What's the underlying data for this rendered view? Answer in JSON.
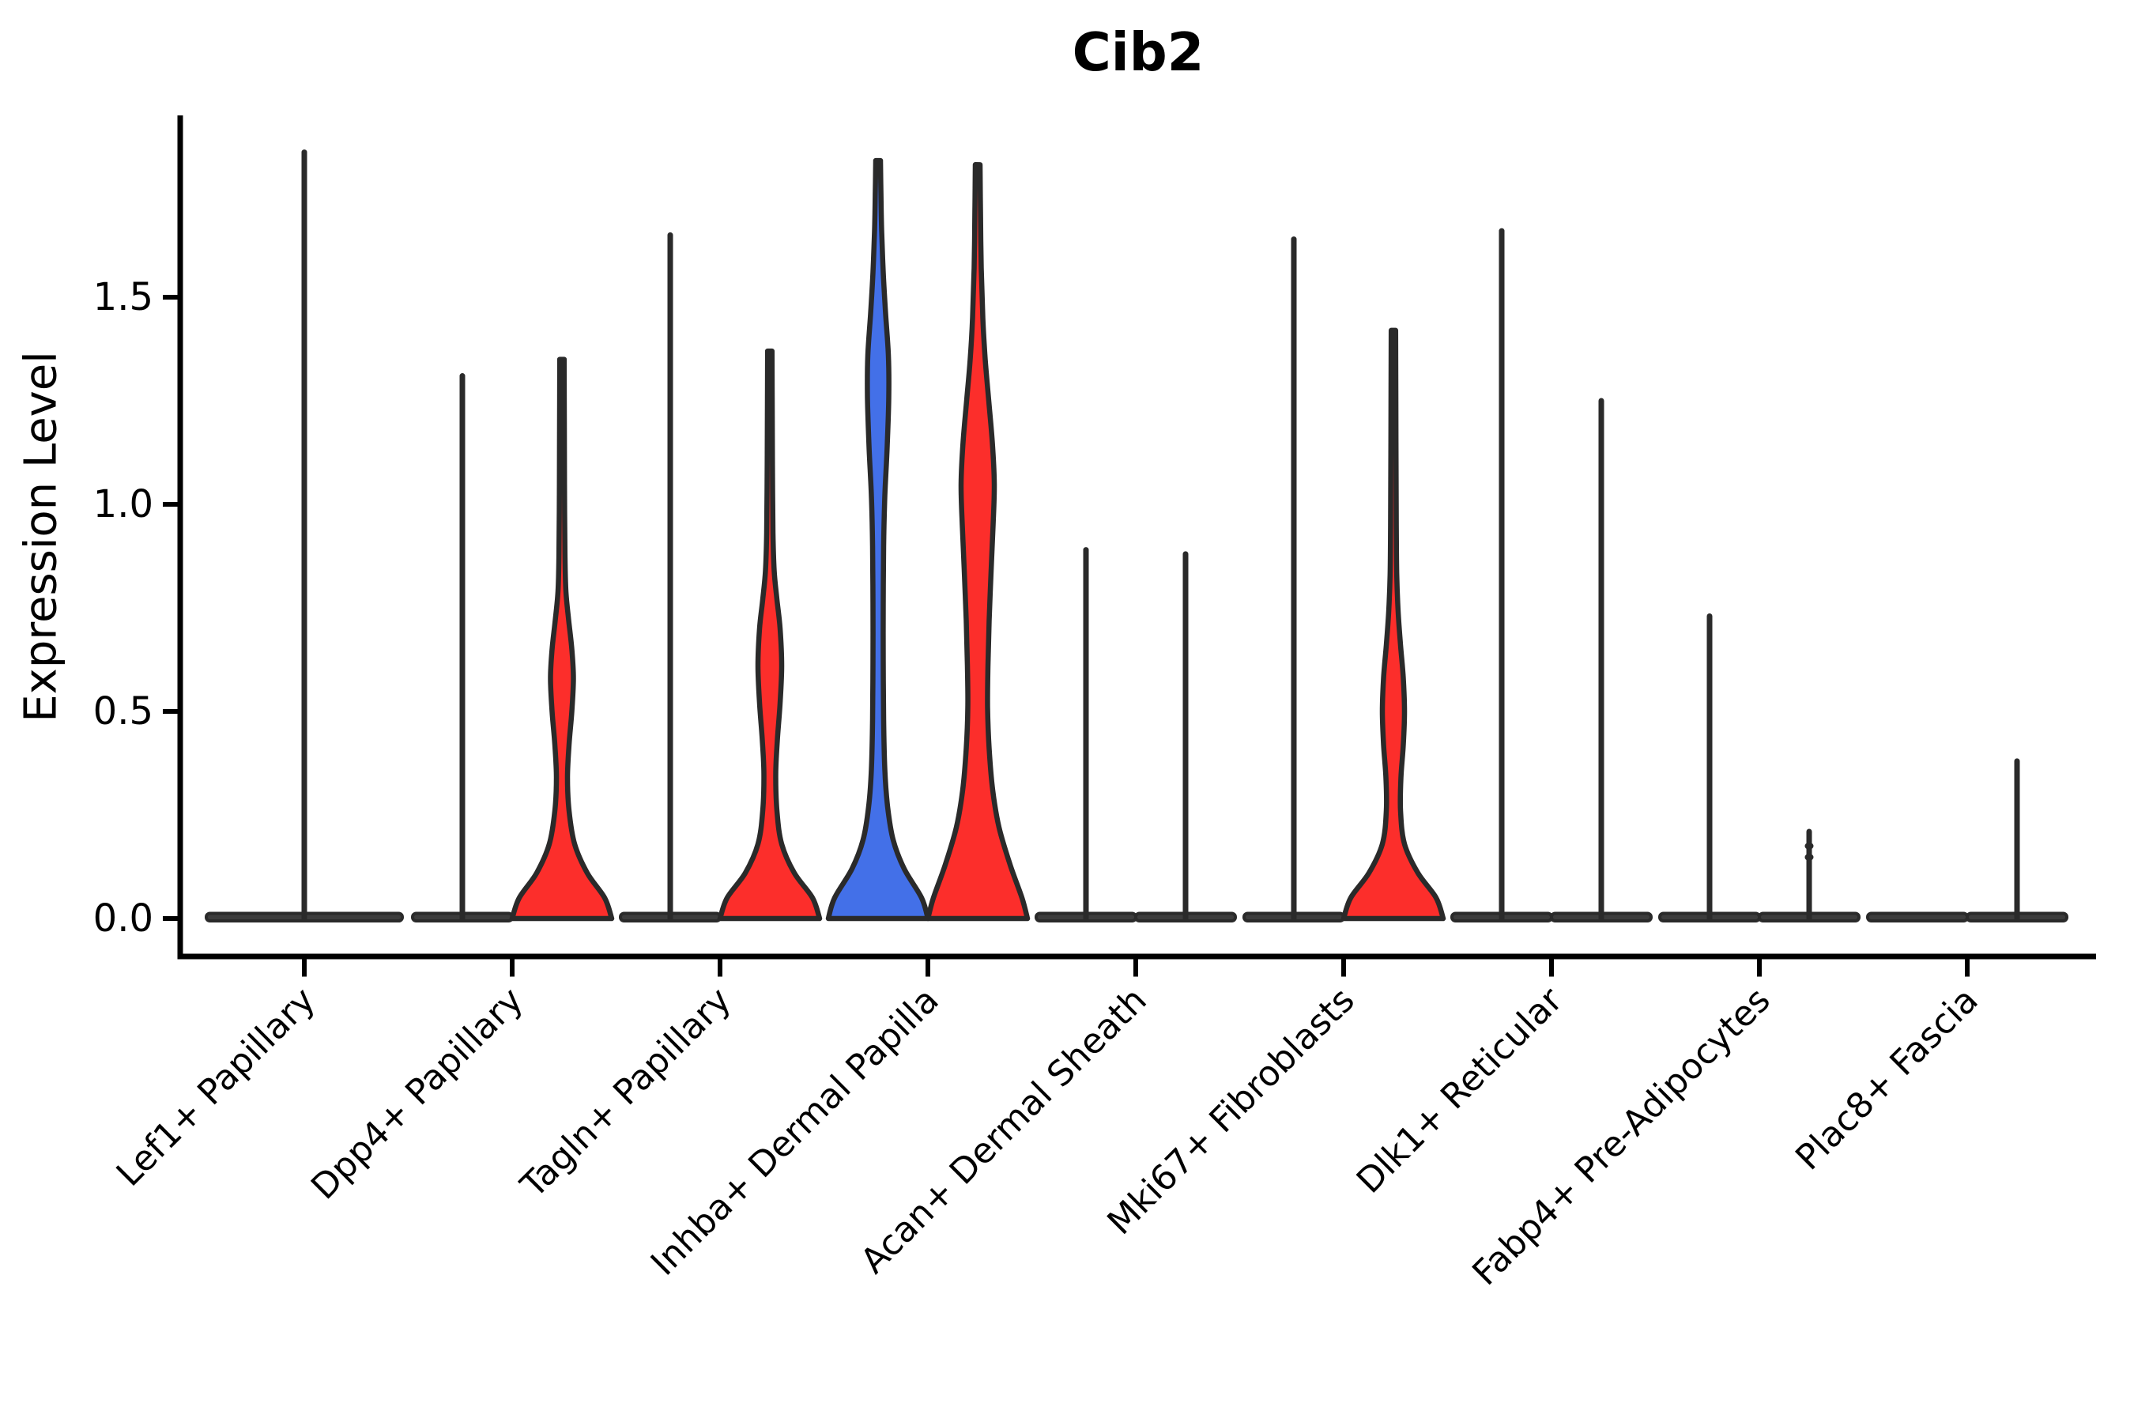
{
  "title": "Cib2",
  "axes": {
    "ylabel": "Expression Level",
    "ytick_labels": [
      "0.0",
      "0.5",
      "1.0",
      "1.5"
    ],
    "ytick_values": [
      0.0,
      0.5,
      1.0,
      1.5
    ]
  },
  "colors": {
    "red": "#fc2e2b",
    "blue": "#4370e8",
    "outline": "#2a2a2a",
    "dark_fill": "#3c3c3c",
    "axis": "#000000"
  },
  "chart_data": {
    "type": "violin",
    "title": "Cib2",
    "ylabel": "Expression Level",
    "ylim": [
      -0.09,
      1.93
    ],
    "grid": false,
    "legend": "none",
    "categories": [
      "Lef1+ Papillary",
      "Dpp4+ Papillary",
      "Tagln+ Papillary",
      "Inhba+ Dermal Papilla",
      "Acan+ Dermal Sheath",
      "Mki67+ Fibroblasts",
      "Dlk1+ Reticular",
      "Fabp4+ Pre-Adipocytes",
      "Plac8+ Fascia"
    ],
    "violins": [
      {
        "category": "Lef1+ Papillary",
        "position": "center",
        "color": "dark",
        "kind": "flat",
        "max_expression": 1.85,
        "base_halfwidth": 124
      },
      {
        "category": "Dpp4+ Papillary",
        "position": "left",
        "color": "dark",
        "kind": "flat",
        "max_expression": 1.31,
        "base_halfwidth": 63
      },
      {
        "category": "Dpp4+ Papillary",
        "position": "right",
        "color": "red",
        "kind": "profile",
        "max_expression": 1.35,
        "profile": [
          [
            0,
            63
          ],
          [
            0.05,
            54
          ],
          [
            0.11,
            32
          ],
          [
            0.18,
            16
          ],
          [
            0.26,
            9
          ],
          [
            0.34,
            7
          ],
          [
            0.42,
            9
          ],
          [
            0.5,
            12.5
          ],
          [
            0.58,
            14.5
          ],
          [
            0.65,
            12.5
          ],
          [
            0.72,
            8.5
          ],
          [
            0.79,
            5
          ],
          [
            0.88,
            3.8
          ],
          [
            1.05,
            3.2
          ],
          [
            1.2,
            3
          ],
          [
            1.35,
            2.8
          ]
        ]
      },
      {
        "category": "Tagln+ Papillary",
        "position": "left",
        "color": "dark",
        "kind": "flat",
        "max_expression": 1.65,
        "base_halfwidth": 63
      },
      {
        "category": "Tagln+ Papillary",
        "position": "right",
        "color": "red",
        "kind": "profile",
        "max_expression": 1.37,
        "profile": [
          [
            0,
            63
          ],
          [
            0.05,
            54
          ],
          [
            0.11,
            31
          ],
          [
            0.18,
            15
          ],
          [
            0.26,
            9
          ],
          [
            0.35,
            7.5
          ],
          [
            0.43,
            9.5
          ],
          [
            0.52,
            13
          ],
          [
            0.61,
            15
          ],
          [
            0.7,
            13
          ],
          [
            0.77,
            9
          ],
          [
            0.84,
            5.5
          ],
          [
            0.93,
            4
          ],
          [
            1.1,
            3.3
          ],
          [
            1.25,
            3
          ],
          [
            1.37,
            2.8
          ]
        ]
      },
      {
        "category": "Inhba+ Dermal Papilla",
        "position": "left",
        "color": "blue",
        "kind": "profile",
        "max_expression": 1.83,
        "profile": [
          [
            0,
            63
          ],
          [
            0.05,
            55
          ],
          [
            0.12,
            33
          ],
          [
            0.19,
            19
          ],
          [
            0.27,
            12
          ],
          [
            0.36,
            8.5
          ],
          [
            0.48,
            7
          ],
          [
            0.62,
            6.5
          ],
          [
            0.76,
            6.5
          ],
          [
            0.9,
            7
          ],
          [
            1.02,
            8.5
          ],
          [
            1.14,
            11.5
          ],
          [
            1.26,
            13.5
          ],
          [
            1.36,
            13
          ],
          [
            1.46,
            9.5
          ],
          [
            1.56,
            6.5
          ],
          [
            1.66,
            4.5
          ],
          [
            1.75,
            3.6
          ],
          [
            1.83,
            3
          ]
        ]
      },
      {
        "category": "Inhba+ Dermal Papilla",
        "position": "right",
        "color": "red",
        "kind": "profile",
        "max_expression": 1.82,
        "profile": [
          [
            0,
            63
          ],
          [
            0.05,
            56
          ],
          [
            0.13,
            41
          ],
          [
            0.22,
            27
          ],
          [
            0.31,
            19
          ],
          [
            0.41,
            14.5
          ],
          [
            0.51,
            12.5
          ],
          [
            0.61,
            13
          ],
          [
            0.72,
            14.5
          ],
          [
            0.84,
            17
          ],
          [
            0.95,
            19.5
          ],
          [
            1.05,
            21
          ],
          [
            1.15,
            18.5
          ],
          [
            1.25,
            14
          ],
          [
            1.35,
            9.5
          ],
          [
            1.45,
            6.5
          ],
          [
            1.57,
            4.5
          ],
          [
            1.7,
            3.6
          ],
          [
            1.82,
            3
          ]
        ]
      },
      {
        "category": "Acan+ Dermal Sheath",
        "position": "left",
        "color": "dark",
        "kind": "flat",
        "max_expression": 0.89,
        "base_halfwidth": 63
      },
      {
        "category": "Acan+ Dermal Sheath",
        "position": "right",
        "color": "dark",
        "kind": "flat",
        "max_expression": 0.88,
        "base_halfwidth": 63
      },
      {
        "category": "Mki67+ Fibroblasts",
        "position": "left",
        "color": "dark",
        "kind": "flat",
        "max_expression": 1.64,
        "base_halfwidth": 63
      },
      {
        "category": "Mki67+ Fibroblasts",
        "position": "right",
        "color": "red",
        "kind": "profile",
        "max_expression": 1.42,
        "profile": [
          [
            0,
            63
          ],
          [
            0.05,
            54
          ],
          [
            0.11,
            31
          ],
          [
            0.18,
            14
          ],
          [
            0.26,
            9
          ],
          [
            0.34,
            9.5
          ],
          [
            0.42,
            12.5
          ],
          [
            0.5,
            14
          ],
          [
            0.58,
            12.5
          ],
          [
            0.66,
            9
          ],
          [
            0.74,
            6
          ],
          [
            0.83,
            4.2
          ],
          [
            0.95,
            3.6
          ],
          [
            1.15,
            3.2
          ],
          [
            1.42,
            2.8
          ]
        ]
      },
      {
        "category": "Dlk1+ Reticular",
        "position": "left",
        "color": "dark",
        "kind": "flat",
        "max_expression": 1.66,
        "base_halfwidth": 63
      },
      {
        "category": "Dlk1+ Reticular",
        "position": "right",
        "color": "dark",
        "kind": "flat",
        "max_expression": 1.25,
        "base_halfwidth": 63
      },
      {
        "category": "Fabp4+ Pre-Adipocytes",
        "position": "left",
        "color": "dark",
        "kind": "flat",
        "max_expression": 0.73,
        "base_halfwidth": 63
      },
      {
        "category": "Fabp4+ Pre-Adipocytes",
        "position": "right",
        "color": "dark",
        "kind": "flat",
        "max_expression": 0.21,
        "base_halfwidth": 63,
        "knobs": [
          0.175,
          0.148
        ]
      },
      {
        "category": "Plac8+ Fascia",
        "position": "left",
        "color": "dark",
        "kind": "flat",
        "max_expression": null,
        "base_halfwidth": 63
      },
      {
        "category": "Plac8+ Fascia",
        "position": "right",
        "color": "dark",
        "kind": "flat",
        "max_expression": 0.38,
        "base_halfwidth": 63
      }
    ]
  }
}
